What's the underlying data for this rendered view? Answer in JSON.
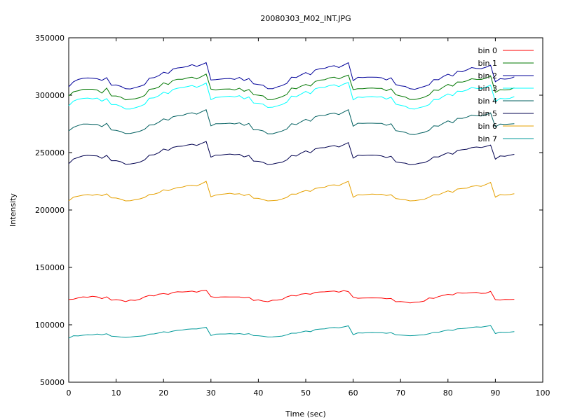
{
  "chart_data": {
    "type": "line",
    "title": "20080303_M02_INT.JPG",
    "xlabel": "Time (sec)",
    "ylabel": "Intensity",
    "xlim": [
      0,
      100
    ],
    "ylim": [
      50000,
      350000
    ],
    "x_ticks": [
      "0",
      "10",
      "20",
      "30",
      "40",
      "50",
      "60",
      "70",
      "80",
      "90",
      "100"
    ],
    "y_ticks": [
      "50000",
      "100000",
      "150000",
      "200000",
      "250000",
      "300000",
      "350000"
    ],
    "grid": false,
    "legend_position": "top-right",
    "x": [
      0,
      1,
      2,
      3,
      4,
      5,
      6,
      7,
      8,
      9,
      10,
      11,
      12,
      13,
      14,
      15,
      16,
      17,
      18,
      19,
      20,
      21,
      22,
      23,
      24,
      25,
      26,
      27,
      28,
      29,
      30,
      31,
      32,
      33,
      34,
      35,
      36,
      37,
      38,
      39,
      40,
      41,
      42,
      43,
      44,
      45,
      46,
      47,
      48,
      49,
      50,
      51,
      52,
      53,
      54,
      55,
      56,
      57,
      58,
      59,
      60,
      61,
      62,
      63,
      64,
      65,
      66,
      67,
      68,
      69,
      70,
      71,
      72,
      73,
      74,
      75,
      76,
      77,
      78,
      79,
      80,
      81,
      82,
      83,
      84,
      85,
      86,
      87,
      88,
      89,
      90,
      91,
      92,
      93,
      94
    ],
    "series": [
      {
        "name": "bin 0",
        "color": "#ff0000",
        "values": [
          122000,
          122300,
          123500,
          124300,
          124000,
          124900,
          124300,
          122800,
          124400,
          121500,
          121900,
          121400,
          120200,
          121600,
          121300,
          122200,
          124300,
          125600,
          125200,
          126700,
          127200,
          126500,
          128200,
          128800,
          128600,
          128900,
          129300,
          128400,
          129700,
          130100,
          124600,
          123800,
          124200,
          124300,
          124200,
          124200,
          124200,
          123500,
          124000,
          121200,
          121700,
          120700,
          120100,
          121400,
          121500,
          122100,
          124300,
          125600,
          125200,
          126700,
          127200,
          126600,
          128200,
          128600,
          128700,
          129100,
          129400,
          128400,
          129800,
          128900,
          124000,
          123100,
          123300,
          123400,
          123500,
          123400,
          123300,
          122700,
          122900,
          120100,
          120300,
          119800,
          119100,
          119700,
          119900,
          120700,
          123400,
          123000,
          124600,
          125700,
          126500,
          126100,
          127900,
          127600,
          127700,
          128000,
          128200,
          127400,
          127500,
          129100,
          121900,
          121600,
          122100,
          122000,
          122200
        ]
      },
      {
        "name": "bin 1",
        "color": "#007700",
        "values": [
          299300,
          303000,
          303900,
          305100,
          305200,
          305200,
          304500,
          301800,
          306200,
          299400,
          299300,
          298300,
          296000,
          296500,
          296900,
          297900,
          299700,
          305100,
          305600,
          307000,
          310800,
          309300,
          312900,
          313900,
          313900,
          315000,
          315700,
          314200,
          316200,
          318500,
          305300,
          304600,
          305200,
          305300,
          305400,
          304600,
          306100,
          303400,
          305000,
          300500,
          300000,
          299400,
          296100,
          296200,
          297400,
          298700,
          300700,
          306200,
          305600,
          307800,
          309300,
          308000,
          312000,
          313100,
          313500,
          315100,
          315700,
          314200,
          316100,
          317500,
          304900,
          305700,
          305600,
          306100,
          306300,
          305900,
          305900,
          303900,
          305600,
          300400,
          299300,
          298400,
          296300,
          296300,
          297100,
          298300,
          300200,
          304500,
          304200,
          307000,
          309400,
          307900,
          311500,
          311400,
          312500,
          314300,
          313800,
          313700,
          314800,
          316900,
          302500,
          304800,
          304600,
          304900,
          306400
        ]
      },
      {
        "name": "bin 2",
        "color": "#000099",
        "values": [
          307300,
          311700,
          313700,
          314700,
          315000,
          314800,
          314300,
          312900,
          315300,
          308700,
          308900,
          307700,
          305600,
          305400,
          306600,
          307700,
          309200,
          314800,
          315300,
          317000,
          320000,
          319000,
          322800,
          323800,
          324200,
          325000,
          326600,
          325100,
          326600,
          328400,
          313300,
          313600,
          314000,
          314400,
          314600,
          313800,
          315500,
          312800,
          314500,
          309900,
          309300,
          308700,
          305600,
          305700,
          307200,
          308400,
          310300,
          315700,
          315400,
          317700,
          319700,
          317800,
          322000,
          323100,
          323400,
          325000,
          325700,
          324100,
          326200,
          328300,
          312700,
          315600,
          315400,
          315700,
          315700,
          315600,
          315200,
          313300,
          315200,
          309200,
          308200,
          307600,
          305600,
          305100,
          306400,
          307600,
          309000,
          313600,
          313500,
          316300,
          318300,
          316700,
          320800,
          320400,
          322000,
          324100,
          323300,
          323100,
          324400,
          326100,
          311700,
          314400,
          314000,
          314400,
          316000
        ]
      },
      {
        "name": "bin 3",
        "color": "#00ffff",
        "values": [
          290800,
          294900,
          296500,
          297200,
          297500,
          296800,
          297500,
          294800,
          297000,
          291800,
          291800,
          290300,
          288000,
          288000,
          289000,
          290300,
          292000,
          297300,
          297700,
          299500,
          302600,
          301400,
          305000,
          306100,
          306700,
          307500,
          308500,
          306900,
          308500,
          310700,
          296100,
          298000,
          298400,
          298800,
          299100,
          298500,
          299600,
          296800,
          298500,
          293200,
          292900,
          292200,
          289300,
          289600,
          290700,
          291900,
          293900,
          299200,
          298700,
          301000,
          303300,
          301300,
          305600,
          306700,
          306900,
          308400,
          309100,
          307500,
          309700,
          311100,
          296000,
          298400,
          298100,
          298600,
          298800,
          298400,
          298600,
          296600,
          298300,
          292200,
          291200,
          290300,
          288200,
          287900,
          289200,
          290100,
          291700,
          296300,
          296200,
          298900,
          301100,
          299600,
          303500,
          303300,
          304500,
          306700,
          306000,
          305700,
          307000,
          308800,
          294400,
          297200,
          296900,
          297200,
          298800
        ]
      },
      {
        "name": "bin 4",
        "color": "#005f5f",
        "values": [
          268900,
          272100,
          273600,
          274900,
          274800,
          274600,
          274600,
          272600,
          275500,
          269700,
          269300,
          268300,
          266600,
          266700,
          267600,
          268600,
          270300,
          274000,
          274300,
          276400,
          279400,
          278300,
          281300,
          282100,
          282400,
          283900,
          284700,
          283500,
          285500,
          287400,
          273300,
          275100,
          275100,
          275300,
          275600,
          275000,
          275900,
          273700,
          275400,
          269800,
          269800,
          268900,
          266400,
          266400,
          267600,
          268800,
          270600,
          275100,
          274400,
          276800,
          279000,
          277300,
          281300,
          282300,
          282400,
          283800,
          284400,
          283100,
          285300,
          287400,
          273000,
          275600,
          275400,
          275600,
          275600,
          275500,
          275400,
          273800,
          275100,
          269100,
          268400,
          267600,
          265900,
          265700,
          266800,
          267700,
          269300,
          273300,
          273000,
          275500,
          277600,
          276000,
          279800,
          279800,
          280900,
          282700,
          282200,
          281900,
          283000,
          284600,
          272400,
          274900,
          274600,
          274900,
          275200
        ]
      },
      {
        "name": "bin 5",
        "color": "#00004f",
        "values": [
          240300,
          244400,
          245800,
          247200,
          247600,
          247300,
          247100,
          245000,
          247600,
          242900,
          243000,
          242000,
          239900,
          240100,
          240800,
          241700,
          243600,
          247800,
          248100,
          249900,
          253100,
          252000,
          254600,
          255400,
          255600,
          256600,
          257300,
          256300,
          258000,
          259700,
          246100,
          247800,
          247800,
          248300,
          248700,
          248200,
          248500,
          246300,
          247500,
          242600,
          242400,
          241500,
          239600,
          240000,
          240900,
          241600,
          243600,
          247500,
          247000,
          249500,
          251500,
          249900,
          253300,
          254100,
          254300,
          255400,
          256100,
          254900,
          256800,
          258700,
          245200,
          247700,
          247500,
          247700,
          247800,
          247600,
          247100,
          245700,
          246800,
          241900,
          241200,
          240800,
          239400,
          239800,
          240800,
          241200,
          243100,
          246300,
          246200,
          248200,
          249900,
          248600,
          251800,
          252500,
          253000,
          254300,
          254900,
          254400,
          255400,
          256600,
          244300,
          247100,
          246800,
          247700,
          248500
        ]
      },
      {
        "name": "bin 6",
        "color": "#e5a000",
        "values": [
          207900,
          211200,
          212000,
          212900,
          213400,
          212800,
          213600,
          212500,
          214000,
          210600,
          210400,
          209400,
          207900,
          208100,
          209000,
          209700,
          211000,
          213500,
          213800,
          215000,
          217600,
          216800,
          218400,
          219600,
          220000,
          221200,
          221500,
          221000,
          222800,
          225000,
          211500,
          213000,
          213600,
          214000,
          214600,
          213800,
          214200,
          212600,
          213800,
          210300,
          210100,
          209100,
          207900,
          208200,
          208500,
          209600,
          211000,
          213900,
          213800,
          215600,
          217000,
          216200,
          218800,
          219500,
          219800,
          221600,
          221900,
          221300,
          223300,
          225000,
          211100,
          213300,
          213100,
          213500,
          213900,
          213600,
          213700,
          212700,
          213300,
          210000,
          209400,
          208900,
          207900,
          208200,
          208800,
          209300,
          211100,
          213300,
          213200,
          215000,
          216700,
          215400,
          218300,
          218700,
          219100,
          220600,
          221200,
          220600,
          222200,
          224000,
          211200,
          213400,
          213100,
          213400,
          214200
        ]
      },
      {
        "name": "bin 7",
        "color": "#009999",
        "values": [
          88300,
          90500,
          90300,
          90900,
          91300,
          91200,
          91900,
          91300,
          92200,
          90100,
          89800,
          89300,
          89000,
          89300,
          89800,
          90100,
          90500,
          91800,
          92100,
          92900,
          93900,
          93500,
          94500,
          95200,
          95500,
          96100,
          96400,
          96400,
          97100,
          97800,
          90700,
          91800,
          92000,
          92000,
          92300,
          92000,
          92400,
          91700,
          92300,
          90600,
          90500,
          90000,
          89400,
          89500,
          89800,
          90200,
          91300,
          92700,
          92700,
          93600,
          94600,
          94000,
          95800,
          96300,
          96500,
          97300,
          97600,
          97300,
          98200,
          99100,
          91400,
          93000,
          92800,
          93100,
          93300,
          93200,
          93200,
          92600,
          93100,
          91300,
          91100,
          90800,
          90500,
          90700,
          91100,
          91300,
          92200,
          93500,
          93500,
          94600,
          95500,
          95100,
          96500,
          96700,
          97100,
          97700,
          98200,
          97900,
          98600,
          99300,
          92400,
          93600,
          93400,
          93600,
          94000
        ]
      }
    ]
  }
}
